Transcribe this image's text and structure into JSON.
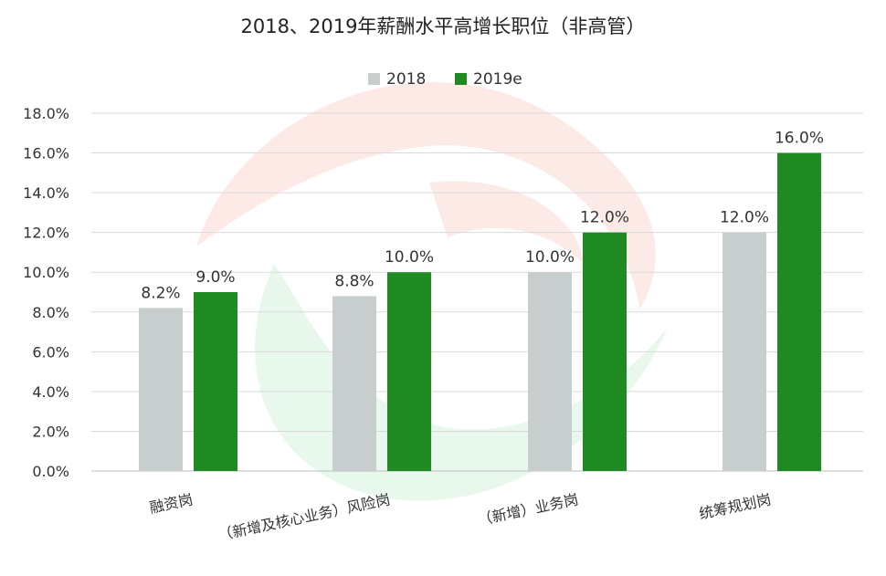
{
  "chart_data": {
    "type": "bar",
    "title": "2018、2019年薪酬水平高增长职位（非高管）",
    "xlabel": "",
    "ylabel": "",
    "ylim": [
      0,
      18
    ],
    "ytick_values": [
      0,
      2,
      4,
      6,
      8,
      10,
      12,
      14,
      16,
      18
    ],
    "ytick_labels": [
      "0.0%",
      "2.0%",
      "4.0%",
      "6.0%",
      "8.0%",
      "10.0%",
      "12.0%",
      "14.0%",
      "16.0%",
      "18.0%"
    ],
    "grid": true,
    "legend_position": "top-center",
    "categories": [
      "融资岗",
      "（新增及核心业务）风险岗",
      "（新增）业务岗",
      "统筹规划岗"
    ],
    "series": [
      {
        "name": "2018",
        "color": "#c8cecd",
        "values": [
          8.2,
          8.8,
          10.0,
          12.0
        ],
        "labels": [
          "8.2%",
          "8.8%",
          "10.0%",
          "12.0%"
        ]
      },
      {
        "name": "2019e",
        "color": "#1e8a21",
        "values": [
          9.0,
          10.0,
          12.0,
          16.0
        ],
        "labels": [
          "9.0%",
          "10.0%",
          "12.0%",
          "16.0%"
        ]
      }
    ]
  }
}
